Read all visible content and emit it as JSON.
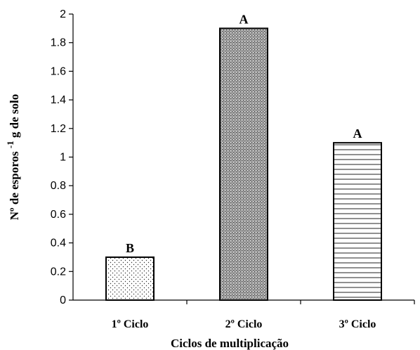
{
  "chart_data": {
    "type": "bar",
    "categories": [
      "1º Ciclo",
      "2º Ciclo",
      "3º Ciclo"
    ],
    "values": [
      0.3,
      1.9,
      1.1
    ],
    "significance_letters": [
      "B",
      "A",
      "A"
    ],
    "bar_patterns": [
      "dots",
      "dense-stipple",
      "horizontal-lines"
    ],
    "title": "",
    "xlabel": "Ciclos de multiplicação",
    "ylabel": {
      "prefix": "Nº de esporos",
      "superscript": "-1",
      "suffix": "g de solo"
    },
    "ylim": [
      0,
      2
    ],
    "yticks": [
      "0",
      "0.2",
      "0.4",
      "0.6",
      "0.8",
      "1",
      "1.2",
      "1.4",
      "1.6",
      "1.8",
      "2"
    ],
    "grid": false,
    "legend": "none",
    "colors": {
      "bar_fill": "#ffffff",
      "bar_stroke": "#000000",
      "axis": "#000000"
    }
  }
}
